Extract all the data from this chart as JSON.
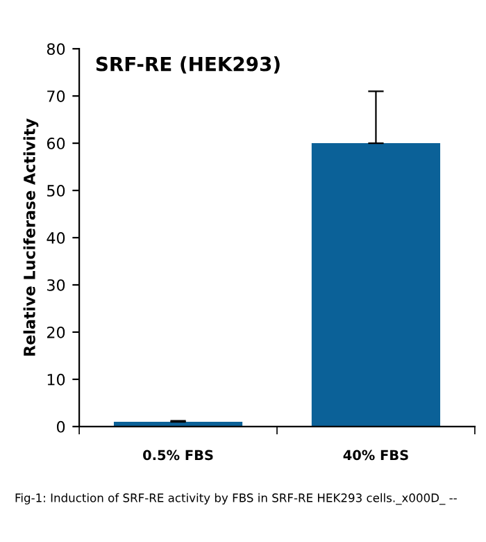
{
  "chart_data": {
    "type": "bar",
    "title": "SRF-RE (HEK293)",
    "ylabel": "Relative Luciferase Activity",
    "categories": [
      "0.5% FBS",
      "40% FBS"
    ],
    "values": [
      1,
      60
    ],
    "errors": [
      0.2,
      11
    ],
    "color": "#0b6198",
    "ylim": [
      0,
      80
    ],
    "yticks": [
      0,
      10,
      20,
      30,
      40,
      50,
      60,
      70,
      80
    ],
    "grid": false,
    "legend": false,
    "annotations": [
      "Fig-1: Induction of SRF-RE activity by FBS in SRF-RE HEK293 cells._x000D_ --"
    ]
  }
}
